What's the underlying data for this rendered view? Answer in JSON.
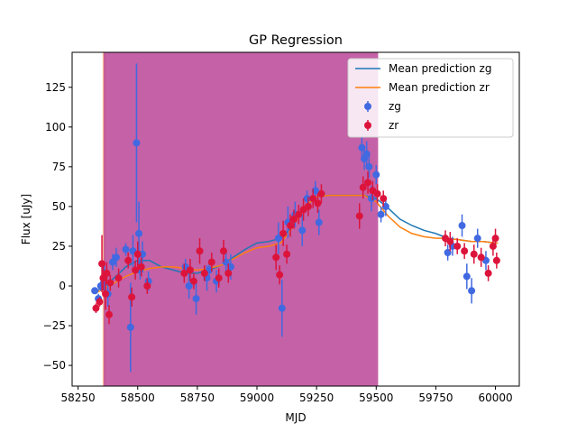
{
  "chart_data": {
    "type": "scatter",
    "title": "GP Regression",
    "xlabel": "MJD",
    "ylabel": "Flux [uJy]",
    "xlim": [
      58225,
      60100
    ],
    "ylim": [
      -63,
      147
    ],
    "xticks": [
      58250,
      58500,
      58750,
      59000,
      59250,
      59500,
      59750,
      60000
    ],
    "yticks": [
      -50,
      -25,
      0,
      25,
      50,
      75,
      100,
      125
    ],
    "legend_position": "upper right",
    "legend": [
      "Mean prediction zg",
      "Mean prediction zr",
      "zg",
      "zr"
    ],
    "shaded_regions": [
      {
        "x0": 58353,
        "x1": 58363,
        "color": "#f4a582",
        "opacity": 0.8
      },
      {
        "x0": 58358,
        "x1": 59508,
        "color": "#b4358e",
        "opacity": 0.78
      }
    ],
    "colors": {
      "zg_line": "#1f77b4",
      "zr_line": "#ff7f0e",
      "zg_points": "#4169e1",
      "zr_points": "#dc143c"
    },
    "lines": [
      {
        "name": "Mean prediction zg",
        "x": [
          58330,
          58380,
          58450,
          58500,
          58550,
          58600,
          58650,
          58700,
          58750,
          58800,
          58850,
          58900,
          58950,
          59000,
          59050,
          59100,
          59150,
          59200,
          59250,
          59300,
          59350,
          59400,
          59450,
          59500,
          59550,
          59600,
          59650,
          59700,
          59750,
          59800,
          59850,
          59900,
          59950,
          60000,
          60010
        ],
        "y": [
          -3,
          2,
          12,
          16,
          16,
          12,
          10,
          8,
          8,
          10,
          13,
          18,
          23,
          27,
          28,
          30,
          38,
          50,
          56,
          57,
          57,
          57,
          57,
          55,
          49,
          42,
          38,
          35,
          33,
          30,
          29,
          28,
          28,
          27,
          27
        ]
      },
      {
        "name": "Mean prediction zr",
        "x": [
          58330,
          58380,
          58450,
          58500,
          58550,
          58600,
          58650,
          58700,
          58750,
          58800,
          58850,
          58900,
          58950,
          59000,
          59050,
          59100,
          59150,
          59200,
          59250,
          59300,
          59350,
          59400,
          59450,
          59500,
          59550,
          59600,
          59650,
          59700,
          59750,
          59800,
          59850,
          59900,
          59950,
          60000,
          60010
        ],
        "y": [
          -4,
          0,
          6,
          9,
          11,
          12,
          12,
          11,
          10,
          11,
          13,
          17,
          21,
          24,
          25,
          27,
          37,
          50,
          56,
          57,
          57,
          57,
          57,
          53,
          44,
          37,
          33,
          31,
          30,
          30,
          29,
          28,
          28,
          27,
          27
        ]
      }
    ],
    "series": [
      {
        "name": "zg",
        "x": [
          58320,
          58335,
          58345,
          58360,
          58375,
          58395,
          58410,
          58450,
          58470,
          58480,
          58495,
          58505,
          58510,
          58520,
          58545,
          58700,
          58715,
          58745,
          58790,
          58800,
          58830,
          58870,
          58890,
          59090,
          59105,
          59130,
          59160,
          59190,
          59210,
          59245,
          59260,
          59440,
          59450,
          59460,
          59470,
          59480,
          59500,
          59520,
          59540,
          59800,
          59820,
          59860,
          59880,
          59900,
          59925,
          59960
        ],
        "y": [
          -3,
          -8,
          0,
          3,
          -5,
          15,
          18,
          23,
          -26,
          22,
          90,
          33,
          10,
          20,
          3,
          12,
          0,
          -8,
          5,
          10,
          3,
          15,
          12,
          30,
          -14,
          40,
          45,
          35,
          55,
          60,
          40,
          87,
          80,
          83,
          75,
          55,
          70,
          45,
          50,
          21,
          25,
          38,
          6,
          -3,
          30,
          16
        ],
        "yerr": [
          2,
          3,
          3,
          10,
          8,
          5,
          6,
          4,
          28,
          10,
          50,
          20,
          6,
          8,
          6,
          5,
          8,
          10,
          8,
          6,
          7,
          6,
          8,
          10,
          18,
          10,
          8,
          10,
          5,
          6,
          8,
          8,
          7,
          8,
          7,
          8,
          6,
          5,
          6,
          5,
          6,
          7,
          8,
          8,
          6,
          6
        ]
      },
      {
        "name": "zr",
        "x": [
          58325,
          58340,
          58350,
          58355,
          58365,
          58370,
          58380,
          58385,
          58420,
          58460,
          58475,
          58490,
          58500,
          58515,
          58540,
          58695,
          58720,
          58735,
          58760,
          58780,
          58810,
          58840,
          58860,
          58880,
          59080,
          59095,
          59110,
          59125,
          59140,
          59155,
          59175,
          59195,
          59215,
          59235,
          59255,
          59270,
          59430,
          59445,
          59465,
          59485,
          59505,
          59530,
          59790,
          59810,
          59840,
          59870,
          59910,
          59940,
          59970,
          59990,
          60000,
          60005
        ],
        "y": [
          -14,
          -10,
          14,
          5,
          -5,
          8,
          -18,
          2,
          5,
          16,
          -7,
          10,
          20,
          12,
          0,
          8,
          10,
          3,
          22,
          8,
          15,
          5,
          22,
          8,
          18,
          7,
          33,
          20,
          38,
          42,
          45,
          48,
          50,
          55,
          52,
          58,
          44,
          62,
          65,
          60,
          58,
          55,
          30,
          28,
          25,
          22,
          20,
          18,
          8,
          25,
          30,
          16
        ],
        "yerr": [
          3,
          3,
          18,
          8,
          10,
          7,
          6,
          5,
          6,
          5,
          6,
          6,
          8,
          6,
          5,
          6,
          7,
          5,
          8,
          5,
          6,
          6,
          7,
          6,
          8,
          6,
          8,
          6,
          7,
          6,
          6,
          7,
          6,
          6,
          6,
          6,
          8,
          7,
          7,
          6,
          6,
          5,
          5,
          6,
          5,
          5,
          6,
          6,
          5,
          6,
          6,
          5
        ]
      }
    ]
  }
}
